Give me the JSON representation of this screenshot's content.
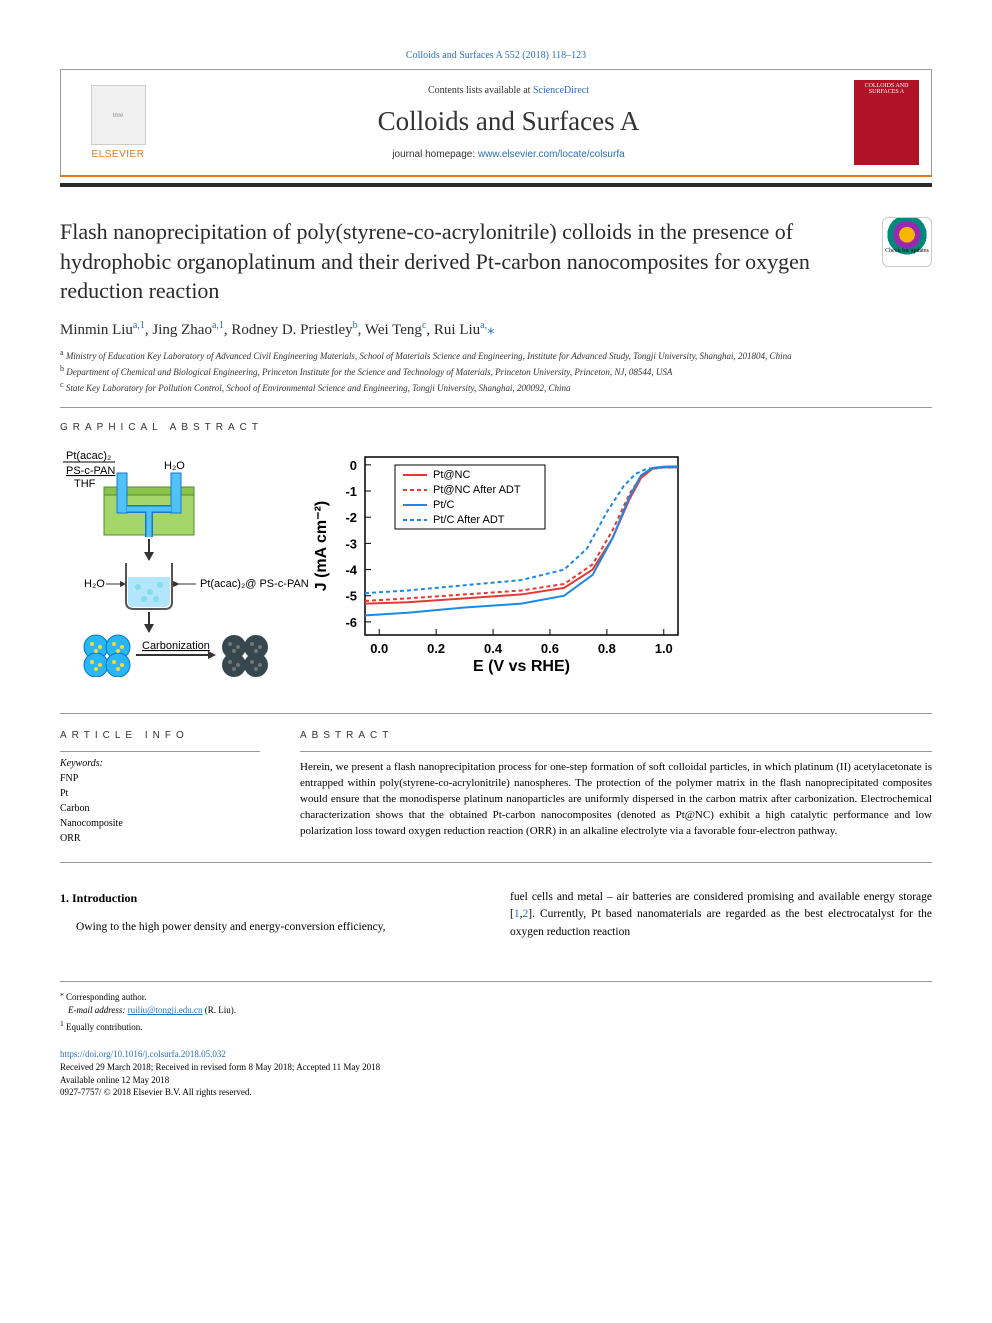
{
  "header": {
    "citation": "Colloids and Surfaces A 552 (2018) 118–123",
    "contents_text": "Contents lists available at",
    "contents_link": "ScienceDirect",
    "journal_name": "Colloids and Surfaces A",
    "homepage_label": "journal homepage:",
    "homepage_url": "www.elsevier.com/locate/colsurfa",
    "elsevier": "ELSEVIER",
    "cover_text": "COLLOIDS AND SURFACES A"
  },
  "title": "Flash nanoprecipitation of poly(styrene-co-acrylonitrile) colloids in the presence of hydrophobic organoplatinum and their derived Pt-carbon nanocomposites for oxygen reduction reaction",
  "check_updates": "Check for updates",
  "authors": {
    "a1": {
      "name": "Minmin Liu",
      "sup": "a,1"
    },
    "a2": {
      "name": "Jing Zhao",
      "sup": "a,1"
    },
    "a3": {
      "name": "Rodney D. Priestley",
      "sup": "b"
    },
    "a4": {
      "name": "Wei Teng",
      "sup": "c"
    },
    "a5": {
      "name": "Rui Liu",
      "sup": "a,",
      "star": "⁎"
    }
  },
  "affiliations": {
    "a": "Ministry of Education Key Laboratory of Advanced Civil Engineering Materials, School of Materials Science and Engineering, Institute for Advanced Study, Tongji University, Shanghai, 201804, China",
    "b": "Department of Chemical and Biological Engineering, Princeton Institute for the Science and Technology of Materials, Princeton University, Princeton, NJ, 08544, USA",
    "c": "State Key Laboratory for Pollution Control, School of Environmental Science and Engineering, Tongji University, Shanghai, 200092, China"
  },
  "sections": {
    "graphical": "GRAPHICAL ABSTRACT",
    "info": "ARTICLE INFO",
    "abstract": "ABSTRACT",
    "intro_num": "1.",
    "intro": "Introduction"
  },
  "keywords_head": "Keywords:",
  "keywords": [
    "FNP",
    "Pt",
    "Carbon",
    "Nanocomposite",
    "ORR"
  ],
  "abstract": "Herein, we present a flash nanoprecipitation process for one-step formation of soft colloidal particles, in which platinum (II) acetylacetonate is entrapped within poly(styrene-co-acrylonitrile) nanospheres. The protection of the polymer matrix in the flash nanoprecipitated composites would ensure that the monodisperse platinum nanoparticles are uniformly dispersed in the carbon matrix after carbonization. Electrochemical characterization shows that the obtained Pt-carbon nanocomposites (denoted as Pt@NC) exhibit a high catalytic performance and low polarization loss toward oxygen reduction reaction (ORR) in an alkaline electrolyte via a favorable four-electron pathway.",
  "intro_left": "Owing to the high power density and energy-conversion efficiency,",
  "intro_right": "fuel cells and metal – air batteries are considered promising and available energy storage [1,2]. Currently, Pt based nanomaterials are regarded as the best electrocatalyst for the oxygen reduction reaction",
  "footnotes": {
    "corr": "Corresponding author.",
    "email_label": "E-mail address:",
    "email": "ruiliu@tongji.edu.cn",
    "email_name": "(R. Liu).",
    "eq": "Equally contribution."
  },
  "pub": {
    "doi": "https://doi.org/10.1016/j.colsurfa.2018.05.032",
    "dates": "Received 29 March 2018; Received in revised form 8 May 2018; Accepted 11 May 2018",
    "online": "Available online 12 May 2018",
    "copyright": "0927-7757/ © 2018 Elsevier B.V. All rights reserved."
  },
  "diagram": {
    "labels": {
      "ptacac": "Pt(acac)₂",
      "pscpan": "PS-c-PAN",
      "thf": "THF",
      "h2o_top": "H₂O",
      "h2o_mid": "H₂O",
      "ptacac_pscpan": "Pt(acac)₂@ PS-c-PAN",
      "carbonization": "Carbonization"
    },
    "colors": {
      "box_green": "#8bc34a",
      "box_border": "#558b2f",
      "tube_blue": "#29b6f6",
      "water_blue": "#4fc3f7",
      "sphere_blue": "#29b6f6",
      "sphere_dark": "#37474f",
      "dot_yellow": "#fdd835",
      "dot_gray": "#616161",
      "arrow": "#333333"
    }
  },
  "chart": {
    "type": "line",
    "xlabel": "E (V vs RHE)",
    "ylabel": "J (mA cm⁻²)",
    "xlim": [
      -0.05,
      1.05
    ],
    "ylim": [
      -6.5,
      0.3
    ],
    "xticks": [
      0.0,
      0.2,
      0.4,
      0.6,
      0.8,
      1.0
    ],
    "yticks": [
      -6,
      -5,
      -4,
      -3,
      -2,
      -1,
      0
    ],
    "legend": [
      {
        "label": "Pt@NC",
        "color": "#e53935",
        "dash": "none"
      },
      {
        "label": "Pt@NC After ADT",
        "color": "#e53935",
        "dash": "4,3"
      },
      {
        "label": "Pt/C",
        "color": "#1e88e5",
        "dash": "none"
      },
      {
        "label": "Pt/C After ADT",
        "color": "#1e88e5",
        "dash": "4,3"
      }
    ],
    "series": {
      "pt_nc": {
        "color": "#e53935",
        "dash": "none",
        "width": 2,
        "x": [
          -0.05,
          0.1,
          0.3,
          0.5,
          0.65,
          0.75,
          0.82,
          0.88,
          0.92,
          0.96,
          1.0,
          1.05
        ],
        "y": [
          -5.3,
          -5.25,
          -5.1,
          -4.95,
          -4.7,
          -4.0,
          -2.8,
          -1.3,
          -0.5,
          -0.15,
          -0.08,
          -0.07
        ]
      },
      "pt_nc_adt": {
        "color": "#e53935",
        "dash": "4,3",
        "width": 2,
        "x": [
          -0.05,
          0.1,
          0.3,
          0.5,
          0.65,
          0.75,
          0.82,
          0.88,
          0.92,
          0.96,
          1.0,
          1.05
        ],
        "y": [
          -5.2,
          -5.1,
          -4.95,
          -4.8,
          -4.55,
          -3.8,
          -2.5,
          -1.1,
          -0.45,
          -0.15,
          -0.1,
          -0.1
        ]
      },
      "pt_c": {
        "color": "#1e88e5",
        "dash": "none",
        "width": 2,
        "x": [
          -0.05,
          0.1,
          0.3,
          0.5,
          0.65,
          0.75,
          0.82,
          0.88,
          0.92,
          0.96,
          1.0,
          1.05
        ],
        "y": [
          -5.75,
          -5.65,
          -5.45,
          -5.3,
          -5.0,
          -4.2,
          -2.8,
          -1.2,
          -0.4,
          -0.12,
          -0.07,
          -0.06
        ]
      },
      "pt_c_adt": {
        "color": "#1e88e5",
        "dash": "4,3",
        "width": 2,
        "x": [
          -0.05,
          0.1,
          0.3,
          0.5,
          0.65,
          0.73,
          0.8,
          0.86,
          0.9,
          0.94,
          1.0,
          1.05
        ],
        "y": [
          -4.9,
          -4.8,
          -4.6,
          -4.4,
          -4.0,
          -3.2,
          -1.8,
          -0.8,
          -0.35,
          -0.15,
          -0.1,
          -0.1
        ]
      }
    },
    "axis_color": "#000000",
    "background": "#ffffff",
    "tick_fontsize": 13,
    "label_fontsize": 16,
    "legend_fontsize": 11
  }
}
